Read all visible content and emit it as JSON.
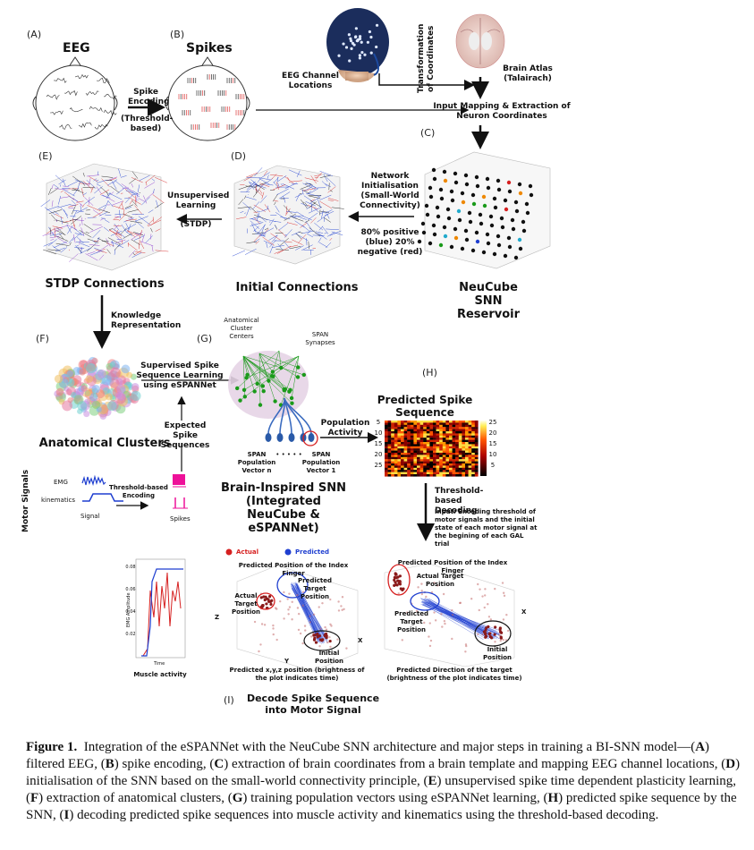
{
  "panels": {
    "A": {
      "letter": "(A)",
      "title": "EEG"
    },
    "B": {
      "letter": "(B)",
      "title": "Spikes"
    },
    "C": {
      "letter": "(C)",
      "title": "NeuCube SNN Reservoir"
    },
    "D": {
      "letter": "(D)",
      "title": "Initial Connections"
    },
    "E": {
      "letter": "(E)",
      "title": "STDP Connections"
    },
    "F": {
      "letter": "(F)",
      "title": "Anatomical Clusters"
    },
    "G": {
      "letter": "(G)",
      "title": "Brain-Inspired SNN (Integrated NeuCube & eSPANNet)"
    },
    "H": {
      "letter": "(H)",
      "title": "Predicted Spike Sequence"
    },
    "I": {
      "letter": "(I)",
      "title": "Decode Spike Sequence into Motor Signal"
    }
  },
  "labels": {
    "spike_encoding": "Spike Encoding",
    "threshold_based": "(Threshold-based)",
    "eeg_channel_locations": "EEG Channel Locations",
    "transformation": "Transformation of Coordinates",
    "brain_atlas": "Brain Atlas (Talairach)",
    "input_mapping": "Input Mapping & Extraction of Neuron Coordinates",
    "network_init": "Network Initialisation (Small-World Connectivity)",
    "pos_neg": "80% positive (blue) 20% negative (red)",
    "unsupervised": "Unsupervised Learning",
    "stdp": "(STDP)",
    "knowledge_rep": "Knowledge Representation",
    "supervised": "Supervised Spike Sequence Learning using eSPANNet",
    "expected_spike": "Expected Spike Sequences",
    "anatomical_centers": "Anatomical Cluster Centers",
    "span_synapses": "SPAN Synapses",
    "population_activity": "Population Activity",
    "span_pop_n": "SPAN Population Vector n",
    "span_pop_1": "SPAN Population Vector 1",
    "dots": "• • • • •",
    "motor_signals": "Motor Signals",
    "emg": "EMG",
    "kinematics": "kinematics",
    "signal": "Signal",
    "spikes": "Spikes",
    "threshold_encoding": "Threshold-based Encoding",
    "threshold_decoding": "Threshold-based Decoding",
    "decoding_input": "Input: Encoding threshold of motor signals and the initial state of each motor signal at the begining of each GAL trial",
    "actual": "Actual",
    "predicted": "Predicted",
    "pred_pos_index": "Predicted Position of the Index Finger",
    "pred_target_pos": "Predicted Target Position",
    "actual_target_pos": "Actual Target Position",
    "initial_pos": "Initial Position",
    "actual_target": "Actual Target Position",
    "pred_target": "Predicted Target Position",
    "initial_pos2": "Initial Position",
    "pred_xyz": "Predicted x,y,z position (brightness of the plot indicates time)",
    "pred_dir": "Predicted Direction of the target (brightness of the plot indicates time)",
    "muscle_activity": "Muscle activity",
    "emg_amplitude": "EMG Amplitude",
    "time": "Time",
    "axis_x": "X",
    "axis_y": "Y",
    "axis_z": "Z"
  },
  "heatmap_ticks": [
    "5",
    "10",
    "15",
    "20",
    "25"
  ],
  "colorbar_ticks": [
    "25",
    "20",
    "15",
    "10",
    "5"
  ],
  "muscle_ticks": [
    "0.08",
    "0.06",
    "0.04",
    "0.02"
  ],
  "caption": {
    "prefix": "Figure 1.",
    "text_1": "Integration of the eSPANNet with the NeuCube SNN architecture and major steps in training a BI-SNN model—(",
    "parts": [
      {
        "key": "A",
        "text": ") filtered EEG, ("
      },
      {
        "key": "B",
        "text": ") spike encoding, ("
      },
      {
        "key": "C",
        "text": ") extraction of brain coordinates from a brain template and mapping EEG channel locations, ("
      },
      {
        "key": "D",
        "text": ") initialisation of the SNN based on the small-world connectivity principle, ("
      },
      {
        "key": "E",
        "text": ") unsupervised spike time dependent plasticity learning, ("
      },
      {
        "key": "F",
        "text": ") extraction of anatomical clusters, ("
      },
      {
        "key": "G",
        "text": ") training population vectors using eSPANNet learning, ("
      },
      {
        "key": "H",
        "text": ") predicted spike sequence by the SNN, ("
      },
      {
        "key": "I",
        "text": ") decoding predicted spike sequences into muscle activity and kinematics using the threshold-based decoding."
      }
    ]
  },
  "colors": {
    "blue": "#1f3fd0",
    "red": "#d62020",
    "magenta": "#ee1199",
    "green": "#1a9a1a",
    "navy": "#1b2d5c"
  }
}
